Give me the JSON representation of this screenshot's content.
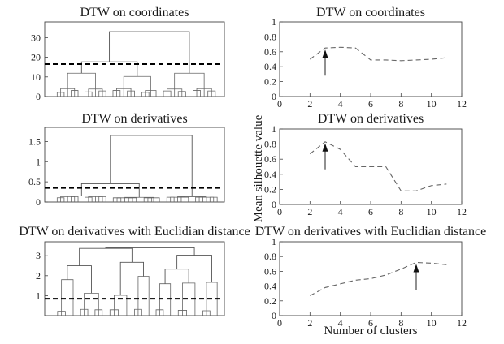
{
  "figure": {
    "shared_ylabel": "Mean silhouette value",
    "shared_xlabel": "Number of clusters"
  },
  "chart_data": [
    {
      "type": "dendrogram",
      "title": "DTW on coordinates",
      "xlabel": "",
      "ylabel": "",
      "ylim": [
        0,
        38
      ],
      "yticks": [
        "0",
        "10",
        "20",
        "30"
      ],
      "cut_threshold": 16.5,
      "top_merge_height": 33,
      "clusters": 3
    },
    {
      "type": "dendrogram",
      "title": "DTW on derivatives",
      "xlabel": "",
      "ylabel": "",
      "ylim": [
        0,
        1.85
      ],
      "yticks": [
        "0",
        "0.5",
        "1",
        "1.5"
      ],
      "cut_threshold": 0.35,
      "top_merge_height": 1.65,
      "clusters": 3
    },
    {
      "type": "dendrogram",
      "title": "DTW on derivatives with Euclidian distance",
      "xlabel": "",
      "ylabel": "",
      "ylim": [
        0,
        3.7
      ],
      "yticks": [
        "1",
        "2",
        "3"
      ],
      "cut_threshold": 0.85,
      "top_merge_height": 3.4,
      "clusters": 9
    },
    {
      "type": "line",
      "title": "DTW on coordinates",
      "xlabel": "",
      "ylabel": "",
      "xlim": [
        0,
        12
      ],
      "ylim": [
        0,
        1
      ],
      "xticks": [
        "0",
        "2",
        "4",
        "6",
        "8",
        "10",
        "12"
      ],
      "yticks": [
        "0",
        "0.2",
        "0.4",
        "0.6",
        "0.8",
        "1"
      ],
      "x": [
        2,
        3,
        4,
        5,
        6,
        7,
        8,
        9,
        10,
        11
      ],
      "y": [
        0.5,
        0.65,
        0.66,
        0.65,
        0.49,
        0.49,
        0.48,
        0.49,
        0.5,
        0.52
      ],
      "marked_optimum": 3
    },
    {
      "type": "line",
      "title": "DTW on derivatives",
      "xlabel": "",
      "ylabel": "",
      "xlim": [
        0,
        12
      ],
      "ylim": [
        0,
        1
      ],
      "xticks": [
        "0",
        "2",
        "4",
        "6",
        "8",
        "10",
        "12"
      ],
      "yticks": [
        "0",
        "0.2",
        "0.4",
        "0.6",
        "0.8",
        "1"
      ],
      "x": [
        2,
        3,
        4,
        5,
        6,
        7,
        8,
        9,
        10,
        11
      ],
      "y": [
        0.67,
        0.83,
        0.73,
        0.5,
        0.5,
        0.5,
        0.18,
        0.18,
        0.25,
        0.27
      ],
      "marked_optimum": 3
    },
    {
      "type": "line",
      "title": "DTW on derivatives with Euclidian distance",
      "xlabel": "",
      "ylabel": "",
      "xlim": [
        0,
        12
      ],
      "ylim": [
        0,
        1
      ],
      "xticks": [
        "0",
        "2",
        "4",
        "6",
        "8",
        "10",
        "12"
      ],
      "yticks": [
        "0",
        "0.2",
        "0.4",
        "0.6",
        "0.8",
        "1"
      ],
      "x": [
        2,
        3,
        4,
        5,
        6,
        7,
        8,
        9,
        10,
        11
      ],
      "y": [
        0.27,
        0.38,
        0.43,
        0.48,
        0.5,
        0.55,
        0.63,
        0.72,
        0.71,
        0.69
      ],
      "marked_optimum": 9
    }
  ]
}
